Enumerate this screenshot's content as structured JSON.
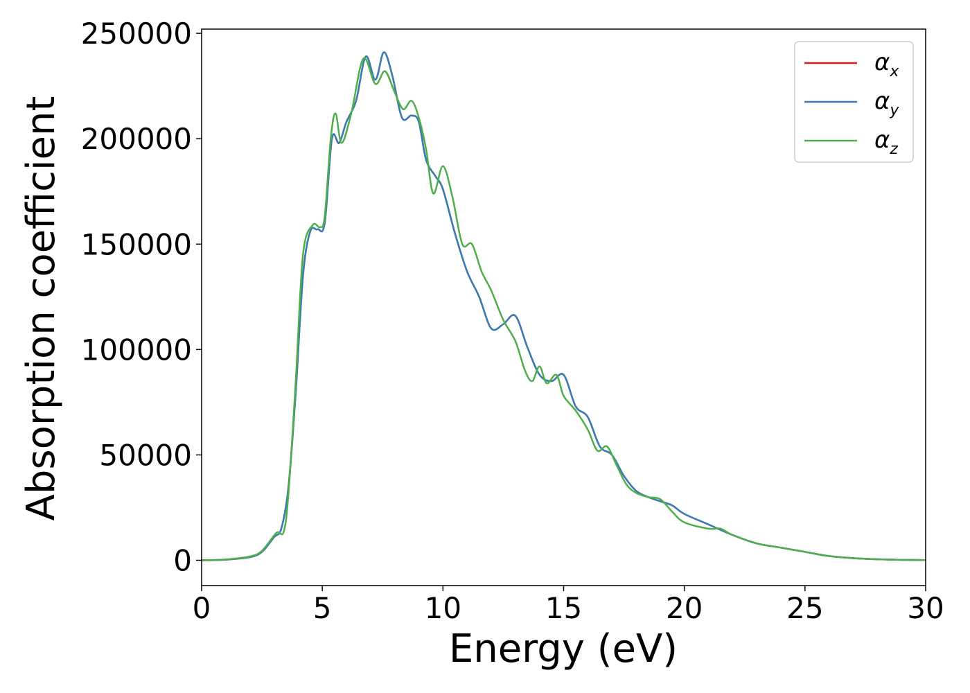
{
  "chart_data": {
    "type": "line",
    "title": "",
    "xlabel": "Energy (eV)",
    "ylabel": "Absorption coefficient",
    "xlim": [
      0,
      30
    ],
    "ylim": [
      -12000,
      252000
    ],
    "xticks": [
      0,
      5,
      10,
      15,
      20,
      25,
      30
    ],
    "yticks": [
      0,
      50000,
      100000,
      150000,
      200000,
      250000
    ],
    "grid": false,
    "legend_position": "top-right",
    "series": [
      {
        "name": "α",
        "sub": "x",
        "color": "#e41a1c",
        "x": [
          0,
          1,
          2,
          2.5,
          3,
          3.3,
          3.6,
          3.9,
          4.2,
          4.5,
          4.8,
          5.1,
          5.4,
          5.7,
          6,
          6.4,
          6.8,
          7.2,
          7.55,
          7.9,
          8.3,
          8.7,
          9,
          9.3,
          9.7,
          10,
          10.5,
          11,
          11.5,
          12,
          12.5,
          13,
          13.5,
          14,
          14.5,
          15,
          15.5,
          16,
          16.5,
          17,
          17.5,
          18,
          18.5,
          19,
          19.5,
          20,
          21,
          22,
          23,
          24,
          25,
          26,
          27,
          28,
          29,
          30
        ],
        "y": [
          0,
          300,
          1500,
          4000,
          11000,
          15000,
          35000,
          80000,
          135000,
          156000,
          157000,
          160000,
          200000,
          198000,
          208000,
          218000,
          239000,
          228000,
          241000,
          230000,
          210000,
          211000,
          208000,
          190000,
          182000,
          176000,
          155000,
          137000,
          125000,
          110000,
          112000,
          116000,
          101000,
          88000,
          85000,
          88000,
          73000,
          68000,
          54000,
          50000,
          40000,
          33000,
          30000,
          28000,
          26000,
          22000,
          17000,
          12000,
          8000,
          6000,
          4000,
          2000,
          1000,
          500,
          200,
          100
        ]
      },
      {
        "name": "α",
        "sub": "y",
        "color": "#377eb8",
        "x": [
          0,
          1,
          2,
          2.5,
          3,
          3.3,
          3.6,
          3.9,
          4.2,
          4.5,
          4.8,
          5.1,
          5.4,
          5.7,
          6,
          6.4,
          6.8,
          7.2,
          7.55,
          7.9,
          8.3,
          8.7,
          9,
          9.3,
          9.7,
          10,
          10.5,
          11,
          11.5,
          12,
          12.5,
          13,
          13.5,
          14,
          14.5,
          15,
          15.5,
          16,
          16.5,
          17,
          17.5,
          18,
          18.5,
          19,
          19.5,
          20,
          21,
          22,
          23,
          24,
          25,
          26,
          27,
          28,
          29,
          30
        ],
        "y": [
          0,
          300,
          1500,
          4000,
          11000,
          15000,
          35000,
          80000,
          135000,
          156000,
          157000,
          160000,
          200000,
          198000,
          208000,
          218000,
          239000,
          228000,
          241000,
          230000,
          210000,
          211000,
          208000,
          190000,
          182000,
          176000,
          155000,
          137000,
          125000,
          110000,
          112000,
          116000,
          101000,
          88000,
          85000,
          88000,
          73000,
          68000,
          54000,
          50000,
          40000,
          33000,
          30000,
          28000,
          26000,
          22000,
          17000,
          12000,
          8000,
          6000,
          4000,
          2000,
          1000,
          500,
          200,
          100
        ]
      },
      {
        "name": "α",
        "sub": "z",
        "color": "#4daf4a",
        "x": [
          0,
          1,
          2,
          2.5,
          3.1,
          3.4,
          3.6,
          3.9,
          4.2,
          4.6,
          4.9,
          5.1,
          5.35,
          5.55,
          5.8,
          6.2,
          6.7,
          7.2,
          7.6,
          8,
          8.35,
          8.7,
          9,
          9.3,
          9.6,
          10,
          10.4,
          10.8,
          11.2,
          11.6,
          12,
          12.5,
          13,
          13.4,
          13.7,
          14,
          14.3,
          14.7,
          15,
          15.5,
          16,
          16.4,
          16.8,
          17.2,
          17.6,
          18,
          18.5,
          19,
          19.5,
          20,
          21,
          21.5,
          22,
          23,
          24,
          25,
          26,
          27,
          28,
          29,
          30
        ],
        "y": [
          0,
          400,
          1800,
          4500,
          13000,
          13500,
          32000,
          85000,
          145000,
          159000,
          158000,
          163000,
          200000,
          212000,
          198000,
          212000,
          238000,
          226000,
          232000,
          222000,
          214000,
          218000,
          210000,
          195000,
          174000,
          187000,
          172000,
          150000,
          150000,
          137000,
          128000,
          114000,
          104000,
          90000,
          85000,
          92000,
          84000,
          88000,
          78000,
          71000,
          62000,
          52000,
          54000,
          45000,
          36000,
          32000,
          30000,
          29000,
          23000,
          18000,
          15000,
          15000,
          12000,
          8000,
          6000,
          4000,
          2000,
          1000,
          500,
          200,
          100
        ]
      }
    ]
  }
}
